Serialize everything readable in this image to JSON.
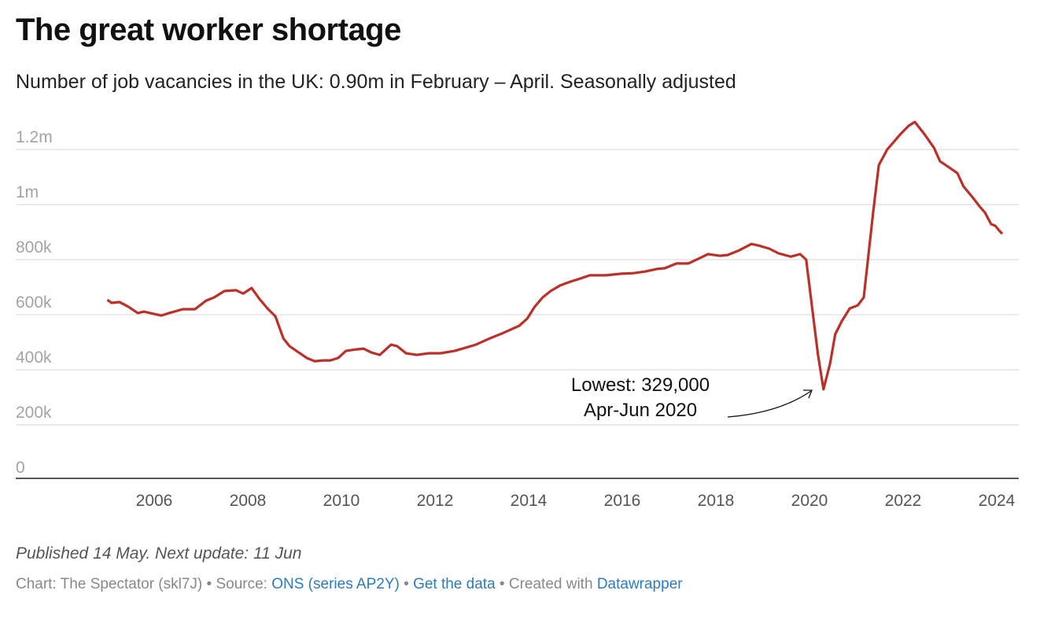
{
  "chart_data": {
    "type": "line",
    "title": "The great worker shortage",
    "subtitle": "Number of job vacancies in the UK: 0.90m in February – April. Seasonally adjusted",
    "xlabel": "",
    "ylabel": "",
    "ylim": [
      0,
      1300
    ],
    "xlim": [
      2004.7,
      2024.45
    ],
    "grid": true,
    "y_ticks": [
      {
        "value": 0,
        "label": "0"
      },
      {
        "value": 200,
        "label": "200k"
      },
      {
        "value": 400,
        "label": "400k"
      },
      {
        "value": 600,
        "label": "600k"
      },
      {
        "value": 800,
        "label": "800k"
      },
      {
        "value": 1000,
        "label": "1m"
      },
      {
        "value": 1200,
        "label": "1.2m"
      }
    ],
    "x_ticks": [
      {
        "value": 2006,
        "label": "2006"
      },
      {
        "value": 2008,
        "label": "2008"
      },
      {
        "value": 2010,
        "label": "2010"
      },
      {
        "value": 2012,
        "label": "2012"
      },
      {
        "value": 2014,
        "label": "2014"
      },
      {
        "value": 2016,
        "label": "2016"
      },
      {
        "value": 2018,
        "label": "2018"
      },
      {
        "value": 2020,
        "label": "2020"
      },
      {
        "value": 2022,
        "label": "2022"
      },
      {
        "value": 2024,
        "label": "2024"
      }
    ],
    "series": [
      {
        "name": "Job vacancies (thousands)",
        "color": "#bb3028",
        "x": [
          2005.0,
          2005.09,
          2005.26,
          2005.45,
          2005.65,
          2005.78,
          2006.15,
          2006.32,
          2006.61,
          2006.87,
          2007.11,
          2007.28,
          2007.5,
          2007.75,
          2007.9,
          2008.08,
          2008.25,
          2008.42,
          2008.59,
          2008.76,
          2008.89,
          2009.14,
          2009.26,
          2009.43,
          2009.6,
          2009.76,
          2009.93,
          2010.1,
          2010.32,
          2010.47,
          2010.64,
          2010.82,
          2011.06,
          2011.19,
          2011.38,
          2011.61,
          2011.87,
          2012.12,
          2012.42,
          2012.59,
          2012.87,
          2013.21,
          2013.46,
          2013.8,
          2013.97,
          2014.13,
          2014.3,
          2014.47,
          2014.67,
          2014.89,
          2015.06,
          2015.31,
          2015.65,
          2015.98,
          2016.24,
          2016.49,
          2016.74,
          2016.91,
          2017.16,
          2017.41,
          2017.66,
          2017.83,
          2018.08,
          2018.25,
          2018.5,
          2018.76,
          2018.92,
          2019.14,
          2019.34,
          2019.6,
          2019.8,
          2019.93,
          2020.18,
          2020.3,
          2020.44,
          2020.55,
          2020.69,
          2020.86,
          2021.03,
          2021.16,
          2021.36,
          2021.48,
          2021.66,
          2021.95,
          2022.12,
          2022.25,
          2022.45,
          2022.66,
          2022.79,
          2022.99,
          2023.16,
          2023.29,
          2023.5,
          2023.63,
          2023.75,
          2023.88,
          2023.97,
          2024.05,
          2024.12
        ],
        "values": [
          654,
          643,
          646,
          629,
          606,
          611,
          597,
          606,
          620,
          620,
          651,
          663,
          686,
          689,
          677,
          697,
          657,
          623,
          594,
          514,
          486,
          457,
          443,
          431,
          434,
          434,
          443,
          469,
          474,
          477,
          463,
          454,
          491,
          486,
          460,
          454,
          460,
          460,
          469,
          477,
          491,
          517,
          534,
          560,
          586,
          629,
          663,
          686,
          706,
          720,
          729,
          743,
          743,
          749,
          751,
          757,
          766,
          769,
          786,
          786,
          806,
          820,
          814,
          817,
          834,
          857,
          851,
          840,
          823,
          811,
          820,
          800,
          457,
          329,
          423,
          529,
          577,
          623,
          634,
          663,
          971,
          1143,
          1200,
          1257,
          1286,
          1300,
          1257,
          1206,
          1157,
          1134,
          1114,
          1066,
          1023,
          994,
          971,
          929,
          923,
          906,
          894
        ]
      }
    ],
    "annotations": [
      {
        "line1": "Lowest: 329,000",
        "line2": "Apr-Jun 2020",
        "x": 2020.3,
        "y": 329
      }
    ]
  },
  "footer": {
    "note": "Published 14 May. Next update: 11 Jun",
    "chart_credit": "Chart: The Spectator (skl7J)",
    "sep": " • ",
    "source_label": "Source: ",
    "source_link": "ONS (series AP2Y)",
    "get_data": "Get the data",
    "created_with": "Created with ",
    "datawrapper": "Datawrapper"
  }
}
